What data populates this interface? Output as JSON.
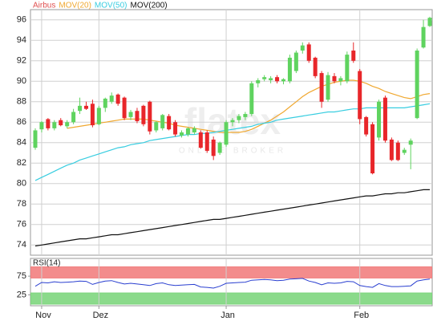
{
  "chart_data": [
    {
      "type": "candlestick",
      "name": "Airbus",
      "color": "#e05050",
      "up_color": "#5fd35f",
      "down_color": "#e8262a",
      "watermark": "flatex",
      "watermark_sub": "ONLINE BROKER",
      "open": [
        83.5,
        85.3,
        86.3,
        85.4,
        86.2,
        85.6,
        86.0,
        87.1,
        87.6,
        87.8,
        85.8,
        87.4,
        88.0,
        88.7,
        88.4,
        86.5,
        87.1,
        87.6,
        88.0,
        85.2,
        85.4,
        86.6,
        86.0,
        84.7,
        84.8,
        85.0,
        85.0,
        85.0,
        84.3,
        83.0,
        83.8,
        86.0,
        86.2,
        86.5,
        86.8,
        89.8,
        90.2,
        90.1,
        90.4,
        90.0,
        90.0,
        91.0,
        93.0,
        93.6,
        92.3,
        90.8,
        88.2,
        90.5,
        90.0,
        90.0,
        93.0,
        91.0,
        86.5,
        85.8,
        84.5,
        88.4,
        84.3,
        84.0,
        83.0,
        83.8,
        86.4,
        93.3,
        95.4
      ],
      "high": [
        85.4,
        86.1,
        86.4,
        86.2,
        86.4,
        86.2,
        87.3,
        88.4,
        88.0,
        88.2,
        87.6,
        88.4,
        88.9,
        88.8,
        88.5,
        87.2,
        87.4,
        87.7,
        88.1,
        86.1,
        86.8,
        86.8,
        86.2,
        85.2,
        85.5,
        85.6,
        85.2,
        85.2,
        84.6,
        84.1,
        86.2,
        86.4,
        86.8,
        87.0,
        90.0,
        90.3,
        90.6,
        90.5,
        90.6,
        90.3,
        92.6,
        93.0,
        93.8,
        93.8,
        92.4,
        91.0,
        90.9,
        90.8,
        90.5,
        92.9,
        93.8,
        91.2,
        86.6,
        86.0,
        88.2,
        88.6,
        84.5,
        84.2,
        83.5,
        84.4,
        93.2,
        96.0,
        96.3
      ],
      "low": [
        83.3,
        85.0,
        85.2,
        85.2,
        85.6,
        85.4,
        85.8,
        86.8,
        87.2,
        85.5,
        85.7,
        87.0,
        87.8,
        87.6,
        86.2,
        86.2,
        85.9,
        85.6,
        84.8,
        85.0,
        85.2,
        85.2,
        84.6,
        84.5,
        84.6,
        84.8,
        83.4,
        83.0,
        82.3,
        82.8,
        83.6,
        85.6,
        85.9,
        86.2,
        86.6,
        89.4,
        90.0,
        89.8,
        89.8,
        89.7,
        89.8,
        90.8,
        92.7,
        91.8,
        90.3,
        87.4,
        88.0,
        89.8,
        89.6,
        89.8,
        91.8,
        85.8,
        84.6,
        80.9,
        84.2,
        84.0,
        82.2,
        82.2,
        82.8,
        81.4,
        86.3,
        93.2,
        95.3
      ],
      "close": [
        85.2,
        86.0,
        85.4,
        86.0,
        85.7,
        86.0,
        87.0,
        87.6,
        87.3,
        85.7,
        87.4,
        88.3,
        88.6,
        87.8,
        86.4,
        87.0,
        86.1,
        85.8,
        85.1,
        86.0,
        86.7,
        85.3,
        84.8,
        85.0,
        85.4,
        85.4,
        83.5,
        83.2,
        82.7,
        84.0,
        86.0,
        86.2,
        86.6,
        86.8,
        89.8,
        90.1,
        90.4,
        90.3,
        90.0,
        90.2,
        92.3,
        92.8,
        93.5,
        92.0,
        90.5,
        88.0,
        90.6,
        90.0,
        90.3,
        92.6,
        92.0,
        86.3,
        84.8,
        81.0,
        88.0,
        84.2,
        82.3,
        82.3,
        83.3,
        84.2,
        93.0,
        95.3,
        96.2
      ],
      "series": [
        {
          "name": "MOV(20)",
          "color": "#f0a830",
          "values": [
            null,
            null,
            null,
            null,
            null,
            85.4,
            85.5,
            85.6,
            85.7,
            85.8,
            85.9,
            86.0,
            86.1,
            86.2,
            86.3,
            86.3,
            86.3,
            86.3,
            86.2,
            86.1,
            86.0,
            85.9,
            85.7,
            85.6,
            85.5,
            85.4,
            85.3,
            85.2,
            85.1,
            85.0,
            85.0,
            85.0,
            85.0,
            85.1,
            85.3,
            85.6,
            85.9,
            86.2,
            86.6,
            87.0,
            87.5,
            88.0,
            88.5,
            88.9,
            89.2,
            89.5,
            89.7,
            89.9,
            90.0,
            90.1,
            90.1,
            90.0,
            89.8,
            89.5,
            89.3,
            89.0,
            88.8,
            88.6,
            88.4,
            88.3,
            88.5,
            88.7,
            88.8
          ]
        },
        {
          "name": "MOV(50)",
          "color": "#38cde0",
          "values": [
            80.3,
            80.6,
            80.9,
            81.2,
            81.5,
            81.8,
            82.0,
            82.3,
            82.5,
            82.7,
            82.9,
            83.1,
            83.3,
            83.5,
            83.6,
            83.8,
            83.9,
            84.0,
            84.2,
            84.3,
            84.4,
            84.5,
            84.6,
            84.7,
            84.8,
            84.8,
            84.9,
            84.9,
            85.0,
            85.1,
            85.2,
            85.3,
            85.4,
            85.5,
            85.6,
            85.8,
            85.9,
            86.0,
            86.2,
            86.3,
            86.4,
            86.5,
            86.6,
            86.7,
            86.8,
            86.9,
            87.0,
            87.0,
            87.1,
            87.2,
            87.3,
            87.3,
            87.4,
            87.4,
            87.4,
            87.4,
            87.4,
            87.4,
            87.4,
            87.5,
            87.6,
            87.7,
            87.8
          ]
        },
        {
          "name": "MOV(200)",
          "color": "#111111",
          "values": [
            73.9,
            74.0,
            74.1,
            74.2,
            74.3,
            74.4,
            74.5,
            74.6,
            74.6,
            74.7,
            74.8,
            74.9,
            75.0,
            75.0,
            75.1,
            75.2,
            75.3,
            75.4,
            75.5,
            75.6,
            75.7,
            75.8,
            75.9,
            76.0,
            76.1,
            76.2,
            76.3,
            76.4,
            76.5,
            76.5,
            76.6,
            76.7,
            76.8,
            76.9,
            77.0,
            77.1,
            77.2,
            77.3,
            77.4,
            77.5,
            77.6,
            77.7,
            77.8,
            77.9,
            78.0,
            78.1,
            78.2,
            78.3,
            78.4,
            78.5,
            78.6,
            78.7,
            78.8,
            78.8,
            78.9,
            79.0,
            79.0,
            79.1,
            79.1,
            79.2,
            79.3,
            79.4,
            79.4
          ]
        }
      ],
      "ylim": [
        73,
        97
      ],
      "yticks": [
        74,
        76,
        78,
        80,
        82,
        84,
        86,
        88,
        90,
        92,
        94,
        96
      ],
      "grid": true
    },
    {
      "type": "line",
      "title": "RSI(14)",
      "color": "#2a3fd0",
      "categories": [
        null,
        "Nov",
        null,
        null,
        null,
        null,
        null,
        null,
        null,
        null,
        "Dez",
        null,
        null,
        null,
        null,
        null,
        null,
        null,
        null,
        null,
        null,
        null,
        null,
        null,
        null,
        null,
        null,
        null,
        null,
        null,
        "Jan",
        null,
        null,
        null,
        null,
        null,
        null,
        null,
        null,
        null,
        null,
        null,
        null,
        null,
        null,
        null,
        null,
        null,
        null,
        null,
        null,
        "Feb",
        null,
        null,
        null,
        null,
        null,
        null,
        null,
        null,
        null,
        null,
        null
      ],
      "values": [
        48,
        58,
        57,
        60,
        58,
        59,
        60,
        62,
        61,
        53,
        58,
        62,
        63,
        58,
        54,
        56,
        54,
        52,
        50,
        55,
        57,
        52,
        50,
        51,
        52,
        53,
        46,
        45,
        43,
        48,
        56,
        57,
        58,
        59,
        64,
        65,
        66,
        65,
        63,
        64,
        67,
        68,
        69,
        62,
        58,
        52,
        57,
        56,
        57,
        61,
        60,
        50,
        47,
        45,
        55,
        50,
        47,
        47,
        48,
        49,
        62,
        65,
        67
      ],
      "bands": [
        {
          "from": 70,
          "to": 100,
          "color": "#f28080"
        },
        {
          "from": 0,
          "to": 30,
          "color": "#7ed67e"
        }
      ],
      "ylim": [
        0,
        100
      ],
      "yticks": [
        25,
        75
      ]
    }
  ]
}
